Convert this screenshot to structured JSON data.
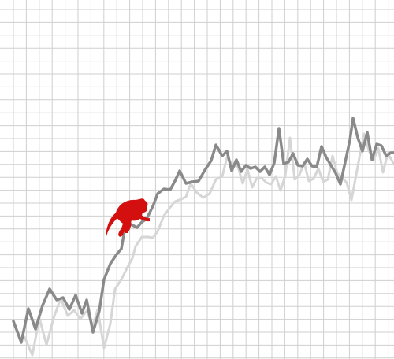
{
  "illustration": {
    "colors": {
      "background": "#ffffff",
      "grid": "#cfcfcf",
      "primary_line": "#8a8a8a",
      "shadow_line": "#d6d6d6",
      "monkey": "#d40f0f"
    },
    "icon": "monkey-icon"
  }
}
